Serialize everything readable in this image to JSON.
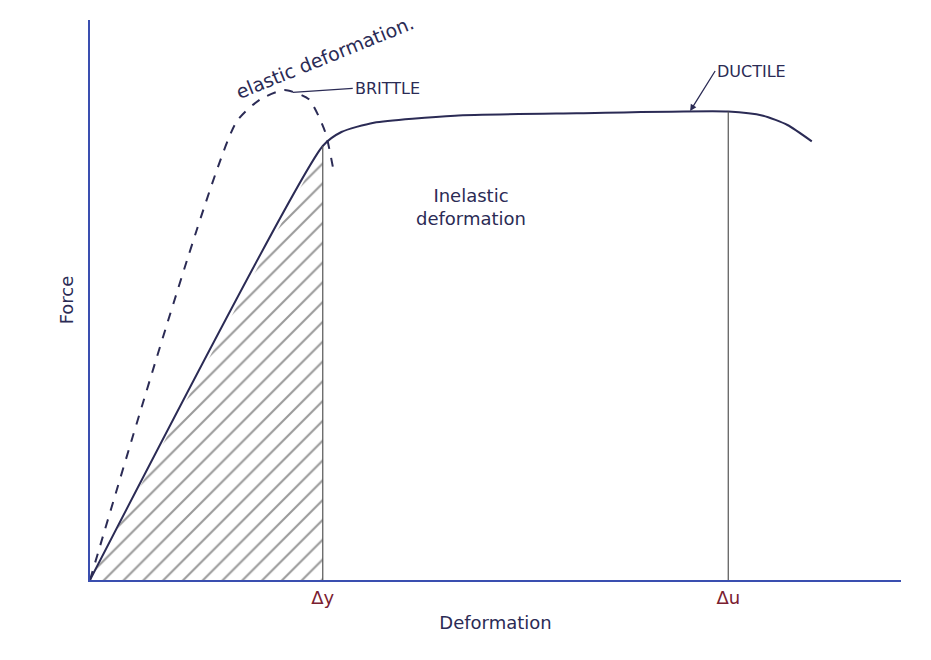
{
  "chart_data": {
    "type": "line",
    "x_label": "Deformation",
    "y_label": "Force",
    "xlim": [
      0,
      100
    ],
    "ylim": [
      0,
      120
    ],
    "xticks": [
      {
        "value": 28.7,
        "label": "Δy"
      },
      {
        "value": 78.7,
        "label": "Δu"
      }
    ],
    "yticks": [],
    "tick_labels": "x",
    "grid": false,
    "series": [
      {
        "name": "BRITTLE",
        "color": "#2b2b55",
        "line_style": "dashed",
        "x": [
          0,
          18,
          21,
          24,
          27,
          29,
          30
        ],
        "values": [
          0,
          98,
          103,
          105,
          103,
          96,
          88
        ]
      },
      {
        "name": "DUCTILE",
        "color": "#2b2b55",
        "line_style": "solid",
        "x": [
          0,
          28.7,
          31,
          35,
          45,
          60,
          78.7,
          83,
          86,
          89
        ],
        "values": [
          0,
          93,
          96,
          98,
          99.5,
          100,
          100.4,
          99.5,
          97.5,
          94
        ]
      }
    ],
    "annotations": [
      {
        "text": "elastic deformation.",
        "x": 29,
        "y": 112
      },
      {
        "text": "BRITTLE",
        "x": 25,
        "y": 104.5
      },
      {
        "text": "DUCTILE",
        "x": 74,
        "y": 100.5
      },
      {
        "text": "Inelastic deformation",
        "x": 47,
        "y": 80
      }
    ]
  }
}
